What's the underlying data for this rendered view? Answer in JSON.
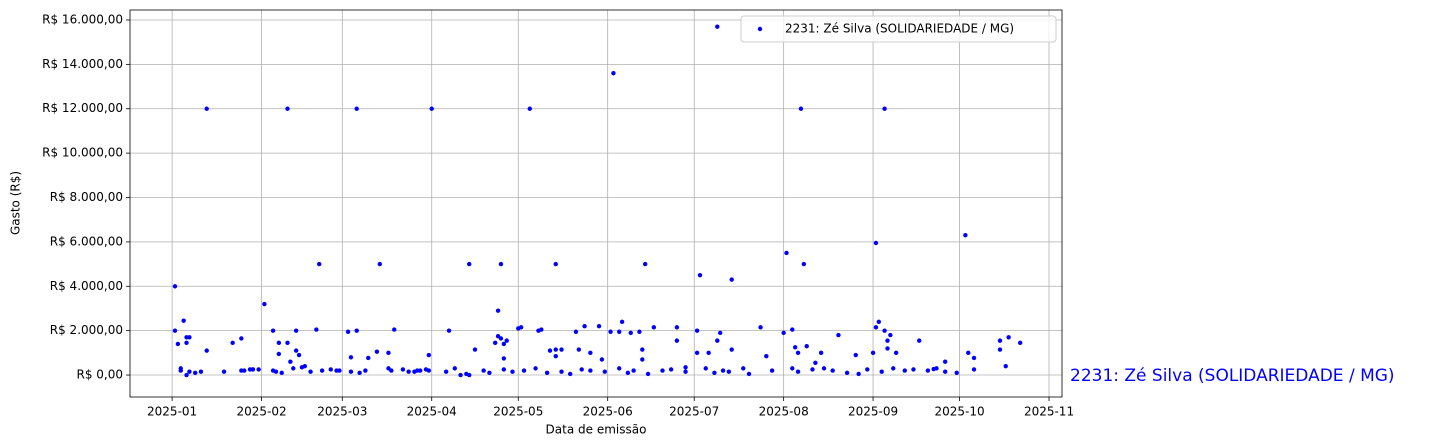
{
  "chart_data": {
    "type": "scatter",
    "xlabel": "Data de emissão",
    "ylabel": "Gasto (R$)",
    "annotation": "2231: Zé Silva (SOLIDARIEDADE / MG)",
    "legend": "upper right",
    "grid": true,
    "xlim": [
      -14.6,
      308.5
    ],
    "ylim": [
      -990,
      16450
    ],
    "xticks": [
      {
        "value": 0,
        "label": "2025-01"
      },
      {
        "value": 31,
        "label": "2025-02"
      },
      {
        "value": 59,
        "label": "2025-03"
      },
      {
        "value": 90,
        "label": "2025-04"
      },
      {
        "value": 120,
        "label": "2025-05"
      },
      {
        "value": 151,
        "label": "2025-06"
      },
      {
        "value": 181,
        "label": "2025-07"
      },
      {
        "value": 212,
        "label": "2025-08"
      },
      {
        "value": 243,
        "label": "2025-09"
      },
      {
        "value": 273,
        "label": "2025-10"
      },
      {
        "value": 304,
        "label": "2025-11"
      }
    ],
    "yticks": [
      {
        "value": 0,
        "label": "R$ 0,00"
      },
      {
        "value": 2000,
        "label": "R$ 2.000,00"
      },
      {
        "value": 4000,
        "label": "R$ 4.000,00"
      },
      {
        "value": 6000,
        "label": "R$ 6.000,00"
      },
      {
        "value": 8000,
        "label": "R$ 8.000,00"
      },
      {
        "value": 10000,
        "label": "R$ 10.000,00"
      },
      {
        "value": 12000,
        "label": "R$ 12.000,00"
      },
      {
        "value": 14000,
        "label": "R$ 14.000,00"
      },
      {
        "value": 16000,
        "label": "R$ 16.000,00"
      }
    ],
    "series": [
      {
        "name": "2231: Zé Silva (SOLIDARIEDADE / MG)",
        "color": "#0000ff",
        "x": [
          1,
          1,
          12,
          40,
          64,
          90,
          124,
          153,
          189,
          218,
          247,
          51,
          72,
          103,
          114,
          133,
          164,
          183,
          194,
          213,
          219,
          244,
          275,
          32,
          113,
          4,
          2,
          5,
          6,
          5,
          3,
          5,
          6,
          12,
          18,
          21,
          24,
          24,
          27,
          28,
          35,
          37,
          40,
          43,
          43,
          44,
          37,
          41,
          36,
          46,
          50,
          52,
          57,
          61,
          64,
          62,
          68,
          71,
          75,
          77,
          76,
          82,
          85,
          89,
          89,
          96,
          98,
          105,
          103,
          112,
          113,
          114,
          115,
          116,
          115,
          120,
          121,
          127,
          128,
          131,
          133,
          133,
          135,
          140,
          143,
          141,
          145,
          148,
          149,
          152,
          155,
          156,
          159,
          162,
          163,
          163,
          167,
          175,
          175,
          178,
          182,
          182,
          186,
          189,
          190,
          194,
          204,
          206,
          212,
          215,
          216,
          217,
          220,
          223,
          225,
          231,
          237,
          243,
          244,
          245,
          247,
          248,
          248,
          249,
          251,
          259,
          264,
          268,
          276,
          278,
          287,
          287,
          290,
          294,
          289,
          3,
          8,
          10,
          25,
          28,
          30,
          35,
          38,
          42,
          45,
          48,
          55,
          58,
          62,
          65,
          67,
          75,
          80,
          84,
          86,
          88,
          95,
          100,
          102,
          108,
          110,
          115,
          118,
          122,
          126,
          130,
          135,
          138,
          142,
          145,
          150,
          155,
          158,
          160,
          165,
          170,
          173,
          178,
          185,
          188,
          191,
          193,
          198,
          200,
          208,
          215,
          217,
          222,
          226,
          229,
          234,
          238,
          241,
          246,
          250,
          254,
          257,
          262,
          265,
          268,
          272,
          278
        ],
        "values": [
          4000,
          2000,
          12000,
          12000,
          12000,
          12000,
          12000,
          13600,
          15700,
          12000,
          12000,
          5000,
          5000,
          5000,
          5000,
          5000,
          5000,
          4500,
          4300,
          5500,
          5000,
          5950,
          6300,
          3200,
          2900,
          2450,
          1400,
          1700,
          1700,
          1450,
          300,
          0,
          150,
          1100,
          150,
          1450,
          1650,
          200,
          250,
          250,
          2000,
          1450,
          1450,
          2000,
          1100,
          900,
          950,
          600,
          150,
          400,
          2050,
          200,
          200,
          1950,
          2000,
          800,
          770,
          1050,
          1000,
          2050,
          200,
          150,
          200,
          900,
          200,
          2000,
          300,
          1150,
          0,
          1450,
          1750,
          1650,
          1400,
          1550,
          750,
          2100,
          2150,
          2000,
          2050,
          1100,
          1150,
          850,
          1150,
          1950,
          2200,
          1150,
          1000,
          2200,
          700,
          1950,
          1950,
          2400,
          1900,
          1950,
          1150,
          700,
          2150,
          2150,
          1550,
          350,
          2000,
          1000,
          1000,
          1550,
          1900,
          1150,
          2150,
          850,
          1900,
          2050,
          1250,
          1000,
          1300,
          550,
          1000,
          1800,
          900,
          1000,
          2150,
          2400,
          2000,
          1200,
          1550,
          1800,
          1000,
          1550,
          270,
          600,
          1000,
          770,
          1550,
          1150,
          1700,
          1450,
          400,
          200,
          100,
          150,
          200,
          250,
          250,
          200,
          100,
          300,
          350,
          150,
          250,
          200,
          150,
          100,
          200,
          300,
          250,
          150,
          200,
          250,
          150,
          0,
          50,
          200,
          100,
          250,
          150,
          200,
          300,
          100,
          150,
          50,
          250,
          200,
          150,
          300,
          100,
          200,
          50,
          200,
          250,
          150,
          300,
          100,
          200,
          150,
          300,
          50,
          200,
          300,
          150,
          250,
          300,
          200,
          100,
          50,
          250,
          150,
          300,
          200,
          250,
          200,
          300,
          150,
          100,
          250
        ]
      }
    ]
  }
}
